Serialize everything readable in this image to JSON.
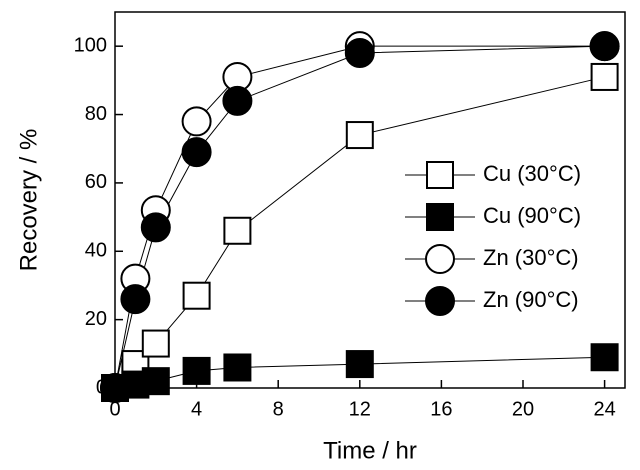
{
  "chart_data": {
    "type": "line",
    "xlabel": "Time / hr",
    "ylabel": "Recovery / %",
    "x": [
      0,
      1,
      2,
      4,
      6,
      12,
      24
    ],
    "series": [
      {
        "name": "Cu (30°C)",
        "color": "#000000",
        "marker": "square",
        "marker_face": "#ffffff",
        "values": [
          0,
          7,
          13,
          27,
          46,
          74,
          91
        ]
      },
      {
        "name": "Cu (90°C)",
        "color": "#000000",
        "marker": "square",
        "marker_face": "#000000",
        "values": [
          0,
          1,
          2,
          5,
          6,
          7,
          9
        ]
      },
      {
        "name": "Zn (30°C)",
        "color": "#000000",
        "marker": "circle",
        "marker_face": "#ffffff",
        "values": [
          0,
          32,
          52,
          78,
          91,
          100,
          100
        ]
      },
      {
        "name": "Zn (90°C)",
        "color": "#000000",
        "marker": "circle",
        "marker_face": "#000000",
        "values": [
          0,
          26,
          47,
          69,
          84,
          98,
          100
        ]
      }
    ],
    "xlim": [
      0,
      25
    ],
    "ylim": [
      0,
      110
    ],
    "xticks": [
      0,
      4,
      8,
      12,
      16,
      20,
      24
    ],
    "yticks": [
      0,
      20,
      40,
      60,
      80,
      100
    ],
    "legend": "right"
  }
}
